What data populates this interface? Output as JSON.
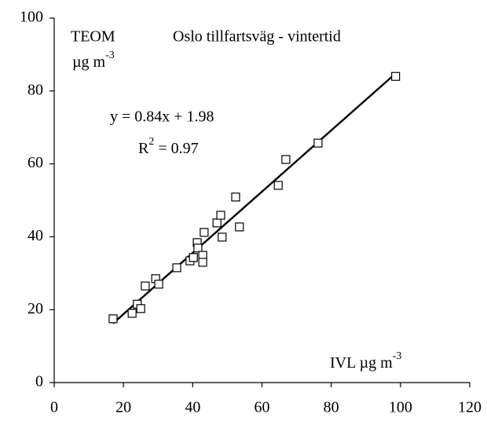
{
  "chart_data": {
    "type": "scatter",
    "title": "Oslo tillfartsväg - vintertid",
    "y_label": {
      "name": "TEOM",
      "unit": "µg m",
      "unit_sup": "-3"
    },
    "x_label": {
      "text": "IVL µg m",
      "sup": "-3"
    },
    "equation": "y = 0.84x + 1.98",
    "r2": {
      "base": "R",
      "sup": "2",
      "rest": " = 0.97"
    },
    "trendline": {
      "slope": 0.84,
      "intercept": 1.98,
      "color": "#000000"
    },
    "marker_color": "#000000",
    "x": [
      17,
      22.5,
      24,
      25,
      26.3,
      29.3,
      30.2,
      35.4,
      39.2,
      40.2,
      41.3,
      41.5,
      42.9,
      42.9,
      43.3,
      47,
      48.1,
      48.5,
      52.4,
      53.5,
      64.7,
      66.9,
      76.2,
      98.6
    ],
    "values": [
      17.5,
      19,
      21.5,
      20.3,
      26.5,
      28.5,
      27,
      31.5,
      33.4,
      34.3,
      38.4,
      36.9,
      34.9,
      33,
      41.2,
      43.8,
      45.9,
      39.9,
      50.9,
      42.7,
      54.1,
      61.2,
      65.7,
      84
    ],
    "xlim": [
      0,
      120
    ],
    "xticks": [
      0,
      20,
      40,
      60,
      80,
      100,
      120
    ],
    "ylim": [
      0,
      100
    ],
    "yticks": [
      0,
      20,
      40,
      60,
      80,
      100
    ],
    "grid": false
  }
}
